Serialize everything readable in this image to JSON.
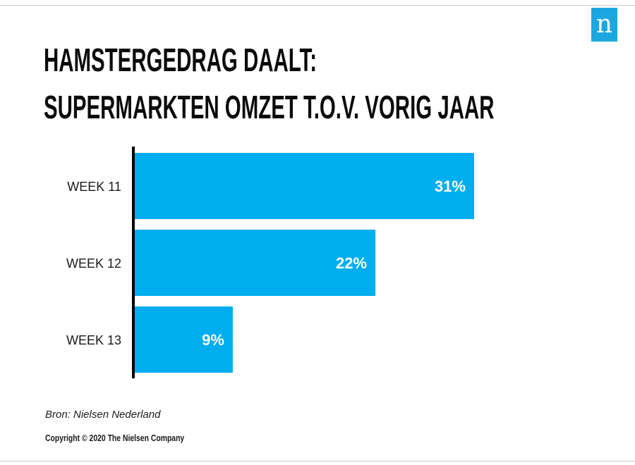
{
  "logo": {
    "glyph": "n",
    "color": "#1aa7e0"
  },
  "title_lines": [
    "HAMSTERGEDRAG DAALT:",
    "SUPERMARKTEN OMZET T.O.V. VORIG JAAR"
  ],
  "source": "Bron: Nielsen Nederland",
  "copyright": "Copyright © 2020 The Nielsen Company",
  "chart_data": {
    "type": "bar",
    "orientation": "horizontal",
    "title": "HAMSTERGEDRAG DAALT: SUPERMARKTEN OMZET T.O.V. VORIG JAAR",
    "categories": [
      "WEEK 11",
      "WEEK 12",
      "WEEK 13"
    ],
    "values": [
      31,
      22,
      9
    ],
    "value_labels": [
      "31%",
      "22%",
      "9%"
    ],
    "unit": "%",
    "bar_color": "#00adee",
    "label_color": "#ffffff",
    "xlim": [
      0,
      31
    ],
    "grid": false,
    "legend": "none"
  }
}
